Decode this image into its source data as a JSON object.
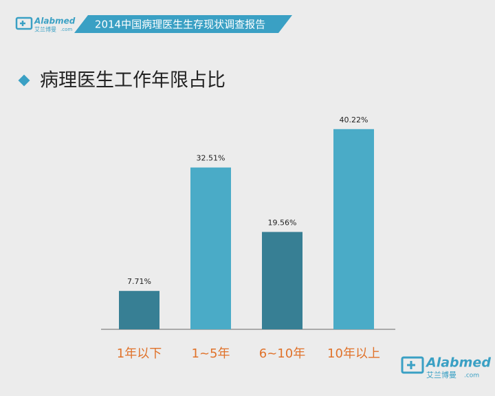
{
  "header": {
    "banner": "2014中国病理医生生存现状调查报告"
  },
  "logo": {
    "name": "Alabmed",
    "chinese": "艾兰博曼",
    "domain": ".com"
  },
  "chart_data": {
    "type": "bar",
    "title": "病理医生工作年限占比",
    "categories": [
      "1年以下",
      "1~5年",
      "6~10年",
      "10年以上"
    ],
    "values": [
      7.71,
      32.51,
      19.56,
      40.22
    ],
    "value_labels": [
      "7.71%",
      "32.51%",
      "19.56%",
      "40.22%"
    ],
    "colors": [
      "#377f94",
      "#4aabc7",
      "#377f94",
      "#4aabc7"
    ],
    "label_color": "#e0722a"
  }
}
